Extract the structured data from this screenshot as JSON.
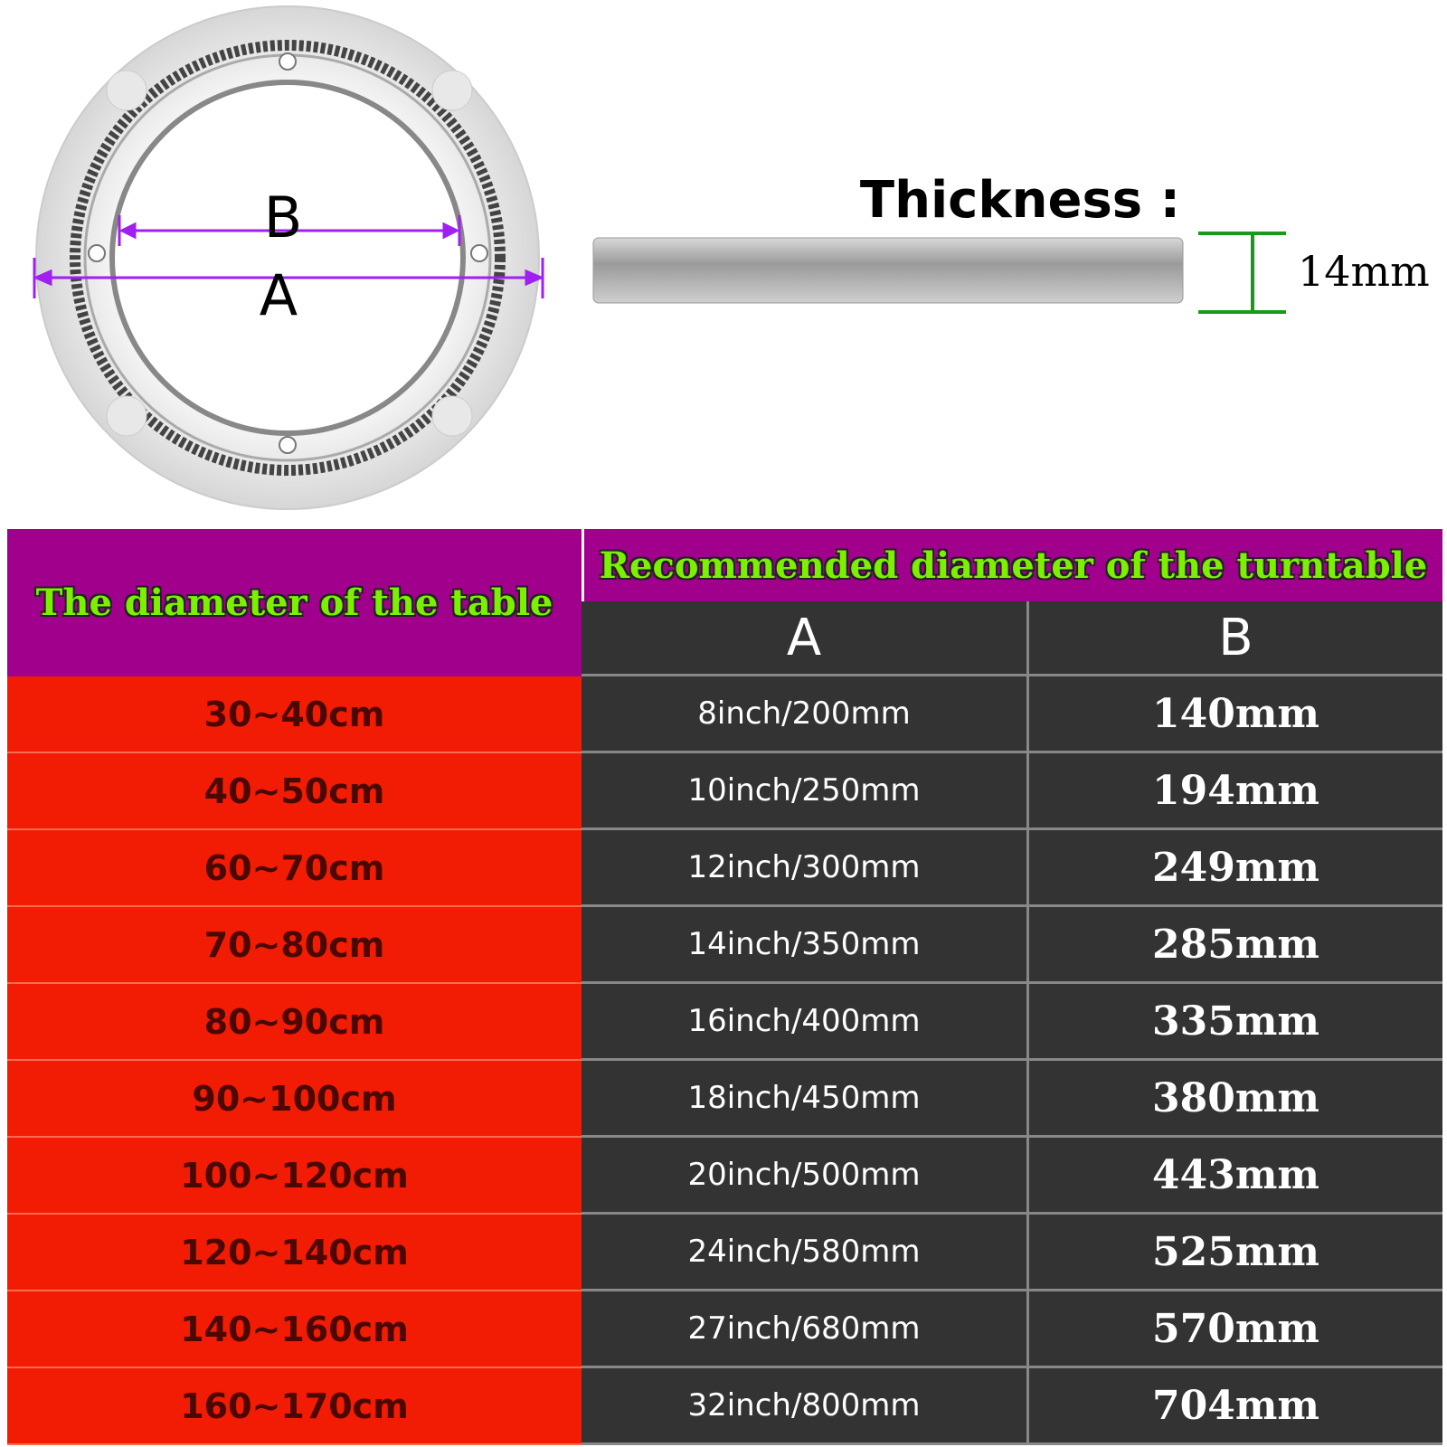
{
  "diagram": {
    "label_b": "B",
    "label_a": "A",
    "thickness_label": "Thickness :",
    "thickness_value": "14mm"
  },
  "table": {
    "header_left": "The diameter of the table",
    "header_right": "Recommended diameter of the turntable",
    "columns": [
      "A",
      "B"
    ],
    "rows": [
      [
        "30~40cm",
        "8inch/200mm",
        "140mm"
      ],
      [
        "40~50cm",
        "10inch/250mm",
        "194mm"
      ],
      [
        "60~70cm",
        "12inch/300mm",
        "249mm"
      ],
      [
        "70~80cm",
        "14inch/350mm",
        "285mm"
      ],
      [
        "80~90cm",
        "16inch/400mm",
        "335mm"
      ],
      [
        "90~100cm",
        "18inch/450mm",
        "380mm"
      ],
      [
        "100~120cm",
        "20inch/500mm",
        "443mm"
      ],
      [
        "120~140cm",
        "24inch/580mm",
        "525mm"
      ],
      [
        "140~160cm",
        "27inch/680mm",
        "570mm"
      ],
      [
        "160~170cm",
        "32inch/800mm",
        "704mm"
      ]
    ]
  }
}
